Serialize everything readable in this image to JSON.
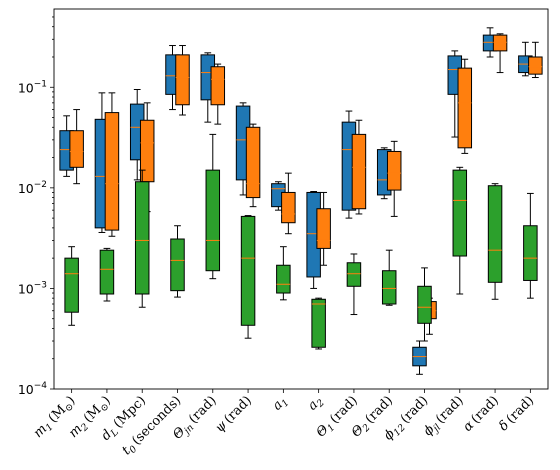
{
  "chart_data": {
    "type": "box",
    "yscale": "log",
    "ylim": [
      0.0001,
      0.6
    ],
    "yticks": [
      0.0001,
      0.001,
      0.01,
      0.1
    ],
    "ytick_labels": [
      {
        "base": "10",
        "exp": "−4"
      },
      {
        "base": "10",
        "exp": "−3"
      },
      {
        "base": "10",
        "exp": "−2"
      },
      {
        "base": "10",
        "exp": "−1"
      }
    ],
    "categories": [
      {
        "sym": "m",
        "sub": "1",
        "unit": "(M",
        "unit_sub": "⊙",
        "unit_end": ")"
      },
      {
        "sym": "m",
        "sub": "2",
        "unit": "(M",
        "unit_sub": "⊙",
        "unit_end": ")"
      },
      {
        "sym": "d",
        "sub": "L",
        "unit": "(Mpc)",
        "unit_sub": "",
        "unit_end": ""
      },
      {
        "sym": "t",
        "sub": "0",
        "unit": "(seconds)",
        "unit_sub": "",
        "unit_end": ""
      },
      {
        "sym": "Θ",
        "sub": "jn",
        "unit": "(rad)",
        "unit_sub": "",
        "unit_end": ""
      },
      {
        "sym": "ψ",
        "sub": "",
        "unit": "(rad)",
        "unit_sub": "",
        "unit_end": ""
      },
      {
        "sym": "a",
        "sub": "1",
        "unit": "",
        "unit_sub": "",
        "unit_end": ""
      },
      {
        "sym": "a",
        "sub": "2",
        "unit": "",
        "unit_sub": "",
        "unit_end": ""
      },
      {
        "sym": "Θ",
        "sub": "1",
        "unit": "(rad)",
        "unit_sub": "",
        "unit_end": ""
      },
      {
        "sym": "Θ",
        "sub": "2",
        "unit": "(rad)",
        "unit_sub": "",
        "unit_end": ""
      },
      {
        "sym": "ϕ",
        "sub": "12",
        "unit": "(rad)",
        "unit_sub": "",
        "unit_end": ""
      },
      {
        "sym": "ϕ",
        "sub": "jl",
        "unit": "(rad)",
        "unit_sub": "",
        "unit_end": ""
      },
      {
        "sym": "α",
        "sub": "",
        "unit": "(rad)",
        "unit_sub": "",
        "unit_end": ""
      },
      {
        "sym": "δ",
        "sub": "",
        "unit": "(rad)",
        "unit_sub": "",
        "unit_end": ""
      }
    ],
    "colors": {
      "blue": "#1f77b4",
      "orange": "#ff7f0e",
      "green": "#2ca02c",
      "median": "#ff7f0e",
      "axis": "#000000"
    },
    "series": [
      {
        "color": "blue",
        "boxes": [
          {
            "cat": 0,
            "whislo": 0.013,
            "q1": 0.015,
            "med": 0.024,
            "q3": 0.037,
            "whishi": 0.052
          },
          {
            "cat": 1,
            "whislo": 0.0036,
            "q1": 0.004,
            "med": 0.013,
            "q3": 0.048,
            "whishi": 0.088
          },
          {
            "cat": 2,
            "whislo": 0.012,
            "q1": 0.019,
            "med": 0.04,
            "q3": 0.068,
            "whishi": 0.095
          },
          {
            "cat": 3,
            "whislo": 0.06,
            "q1": 0.085,
            "med": 0.13,
            "q3": 0.21,
            "whishi": 0.26
          },
          {
            "cat": 4,
            "whislo": 0.045,
            "q1": 0.075,
            "med": 0.14,
            "q3": 0.21,
            "whishi": 0.22
          },
          {
            "cat": 5,
            "whislo": 0.0085,
            "q1": 0.012,
            "med": 0.03,
            "q3": 0.065,
            "whishi": 0.07
          },
          {
            "cat": 6,
            "whislo": 0.006,
            "q1": 0.0065,
            "med": 0.0098,
            "q3": 0.011,
            "whishi": 0.0115
          },
          {
            "cat": 7,
            "whislo": 0.001,
            "q1": 0.0013,
            "med": 0.0035,
            "q3": 0.009,
            "whishi": 0.0092
          },
          {
            "cat": 8,
            "whislo": 0.005,
            "q1": 0.006,
            "med": 0.024,
            "q3": 0.045,
            "whishi": 0.058
          },
          {
            "cat": 9,
            "whislo": 0.0078,
            "q1": 0.0085,
            "med": 0.012,
            "q3": 0.024,
            "whishi": 0.025
          },
          {
            "cat": 10,
            "whislo": 0.00014,
            "q1": 0.00017,
            "med": 0.00021,
            "q3": 0.00026,
            "whishi": 0.0003
          },
          {
            "cat": 11,
            "whislo": 0.032,
            "q1": 0.085,
            "med": 0.15,
            "q3": 0.205,
            "whishi": 0.23
          },
          {
            "cat": 12,
            "whislo": 0.2,
            "q1": 0.23,
            "med": 0.28,
            "q3": 0.33,
            "whishi": 0.39
          },
          {
            "cat": 13,
            "whislo": 0.13,
            "q1": 0.14,
            "med": 0.17,
            "q3": 0.205,
            "whishi": 0.28
          }
        ]
      },
      {
        "color": "orange",
        "boxes": [
          {
            "cat": 0,
            "whislo": 0.011,
            "q1": 0.016,
            "med": 0.023,
            "q3": 0.037,
            "whishi": 0.06
          },
          {
            "cat": 1,
            "whislo": 0.0033,
            "q1": 0.0038,
            "med": 0.011,
            "q3": 0.056,
            "whishi": 0.088
          },
          {
            "cat": 2,
            "whislo": 0.0058,
            "q1": 0.0115,
            "med": 0.028,
            "q3": 0.047,
            "whishi": 0.07
          },
          {
            "cat": 3,
            "whislo": 0.053,
            "q1": 0.067,
            "med": 0.125,
            "q3": 0.21,
            "whishi": 0.26
          },
          {
            "cat": 4,
            "whislo": 0.043,
            "q1": 0.067,
            "med": 0.12,
            "q3": 0.16,
            "whishi": 0.17
          },
          {
            "cat": 5,
            "whislo": 0.0065,
            "q1": 0.008,
            "med": 0.011,
            "q3": 0.04,
            "whishi": 0.043
          },
          {
            "cat": 6,
            "whislo": 0.0035,
            "q1": 0.0045,
            "med": 0.0055,
            "q3": 0.009,
            "whishi": 0.014
          },
          {
            "cat": 7,
            "whislo": 0.0017,
            "q1": 0.0025,
            "med": 0.003,
            "q3": 0.0062,
            "whishi": 0.009
          },
          {
            "cat": 8,
            "whislo": 0.0055,
            "q1": 0.0062,
            "med": 0.016,
            "q3": 0.034,
            "whishi": 0.047
          },
          {
            "cat": 9,
            "whislo": 0.0052,
            "q1": 0.0095,
            "med": 0.014,
            "q3": 0.023,
            "whishi": 0.029
          },
          {
            "cat": 10,
            "whislo": 0.00035,
            "q1": 0.0005,
            "med": 0.0006,
            "q3": 0.00074,
            "whishi": 0.0008
          },
          {
            "cat": 11,
            "whislo": 0.022,
            "q1": 0.025,
            "med": 0.07,
            "q3": 0.155,
            "whishi": 0.19
          },
          {
            "cat": 12,
            "whislo": 0.14,
            "q1": 0.23,
            "med": 0.28,
            "q3": 0.33,
            "whishi": 0.34
          },
          {
            "cat": 13,
            "whislo": 0.125,
            "q1": 0.135,
            "med": 0.16,
            "q3": 0.2,
            "whishi": 0.28
          }
        ]
      },
      {
        "color": "green",
        "boxes": [
          {
            "cat": 0,
            "whislo": 0.00043,
            "q1": 0.00058,
            "med": 0.0014,
            "q3": 0.002,
            "whishi": 0.0026
          },
          {
            "cat": 1,
            "whislo": 0.00075,
            "q1": 0.00088,
            "med": 0.00155,
            "q3": 0.0024,
            "whishi": 0.0025
          },
          {
            "cat": 2,
            "whislo": 0.00065,
            "q1": 0.00088,
            "med": 0.003,
            "q3": 0.0115,
            "whishi": 0.015
          },
          {
            "cat": 3,
            "whislo": 0.00082,
            "q1": 0.00095,
            "med": 0.0019,
            "q3": 0.0031,
            "whishi": 0.0042
          },
          {
            "cat": 4,
            "whislo": 0.00125,
            "q1": 0.0015,
            "med": 0.003,
            "q3": 0.015,
            "whishi": 0.034
          },
          {
            "cat": 5,
            "whislo": 0.00032,
            "q1": 0.00043,
            "med": 0.002,
            "q3": 0.0052,
            "whishi": 0.0053
          },
          {
            "cat": 6,
            "whislo": 0.00077,
            "q1": 0.0009,
            "med": 0.0011,
            "q3": 0.0017,
            "whishi": 0.0026
          },
          {
            "cat": 7,
            "whislo": 0.00025,
            "q1": 0.00026,
            "med": 0.0007,
            "q3": 0.00078,
            "whishi": 0.0008
          },
          {
            "cat": 8,
            "whislo": 0.00055,
            "q1": 0.00105,
            "med": 0.0014,
            "q3": 0.0018,
            "whishi": 0.0022
          },
          {
            "cat": 9,
            "whislo": 0.00068,
            "q1": 0.0007,
            "med": 0.001,
            "q3": 0.0015,
            "whishi": 0.0024
          },
          {
            "cat": 10,
            "whislo": 0.0003,
            "q1": 0.00045,
            "med": 0.00065,
            "q3": 0.00105,
            "whishi": 0.0016
          },
          {
            "cat": 11,
            "whislo": 0.00088,
            "q1": 0.0021,
            "med": 0.0075,
            "q3": 0.015,
            "whishi": 0.016
          },
          {
            "cat": 12,
            "whislo": 0.00078,
            "q1": 0.00115,
            "med": 0.0024,
            "q3": 0.0105,
            "whishi": 0.011
          },
          {
            "cat": 13,
            "whislo": 0.0008,
            "q1": 0.0012,
            "med": 0.002,
            "q3": 0.0042,
            "whishi": 0.0088
          }
        ]
      }
    ]
  }
}
